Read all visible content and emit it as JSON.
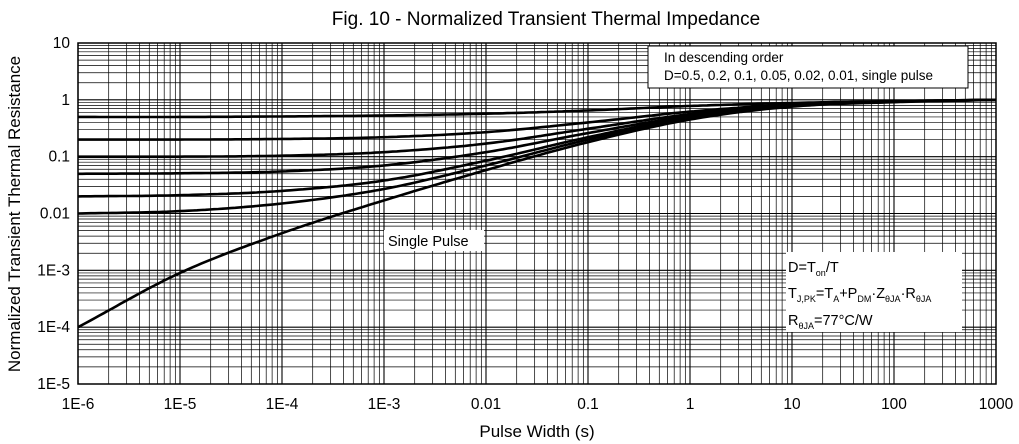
{
  "chart_data": {
    "type": "line",
    "title": "Fig. 10 - Normalized Transient Thermal Impedance",
    "xlabel": "Pulse Width (s)",
    "ylabel": "Normalized Transient Thermal Resistance",
    "x_scale": "log",
    "y_scale": "log",
    "xlim": [
      1e-06,
      1000
    ],
    "ylim": [
      1e-05,
      10
    ],
    "grid": true,
    "x_ticks": [
      "1E-6",
      "1E-5",
      "1E-4",
      "1E-3",
      "0.01",
      "0.1",
      "1",
      "10",
      "100",
      "1000"
    ],
    "y_ticks": [
      "1E-5",
      "1E-4",
      "1E-3",
      "0.01",
      "0.1",
      "1",
      "10"
    ],
    "x": [
      1e-06,
      1e-05,
      0.0001,
      0.001,
      0.01,
      0.1,
      1,
      10,
      100,
      1000
    ],
    "series": [
      {
        "values": [
          0.5,
          0.5,
          0.51,
          0.53,
          0.57,
          0.65,
          0.78,
          0.88,
          0.95,
          1.0
        ]
      },
      {
        "values": [
          0.2,
          0.2,
          0.205,
          0.22,
          0.27,
          0.4,
          0.62,
          0.83,
          0.94,
          1.0
        ]
      },
      {
        "values": [
          0.1,
          0.1,
          0.104,
          0.12,
          0.17,
          0.31,
          0.56,
          0.81,
          0.93,
          1.0
        ]
      },
      {
        "values": [
          0.05,
          0.051,
          0.055,
          0.07,
          0.12,
          0.26,
          0.52,
          0.79,
          0.93,
          1.0
        ]
      },
      {
        "values": [
          0.02,
          0.021,
          0.025,
          0.038,
          0.085,
          0.22,
          0.5,
          0.78,
          0.92,
          1.0
        ]
      },
      {
        "values": [
          0.01,
          0.011,
          0.015,
          0.027,
          0.07,
          0.2,
          0.48,
          0.77,
          0.92,
          1.0
        ]
      },
      {
        "values": [
          0.0001,
          0.0009,
          0.0045,
          0.017,
          0.058,
          0.18,
          0.45,
          0.76,
          0.91,
          1.0
        ]
      }
    ],
    "annotations": {
      "order_line1": "In descending order",
      "order_line2": "D=0.5, 0.2, 0.1, 0.05, 0.02, 0.01, single pulse",
      "single_pulse": "Single Pulse",
      "duty_main": "D=T",
      "duty_sub": "on",
      "duty_end": "/T",
      "tj_main": "T",
      "tj_sub": "J,PK",
      "tj_eq": "=T",
      "tj_a_sub": "A",
      "tj_plus": "+P",
      "tj_dm_sub": "DM",
      "tj_z": "·Z",
      "tj_z_sub": "θJA",
      "tj_r": "·R",
      "tj_r_sub": "θJA",
      "r_main": "R",
      "r_sub": "θJA",
      "r_val": "=77°C/W"
    }
  }
}
